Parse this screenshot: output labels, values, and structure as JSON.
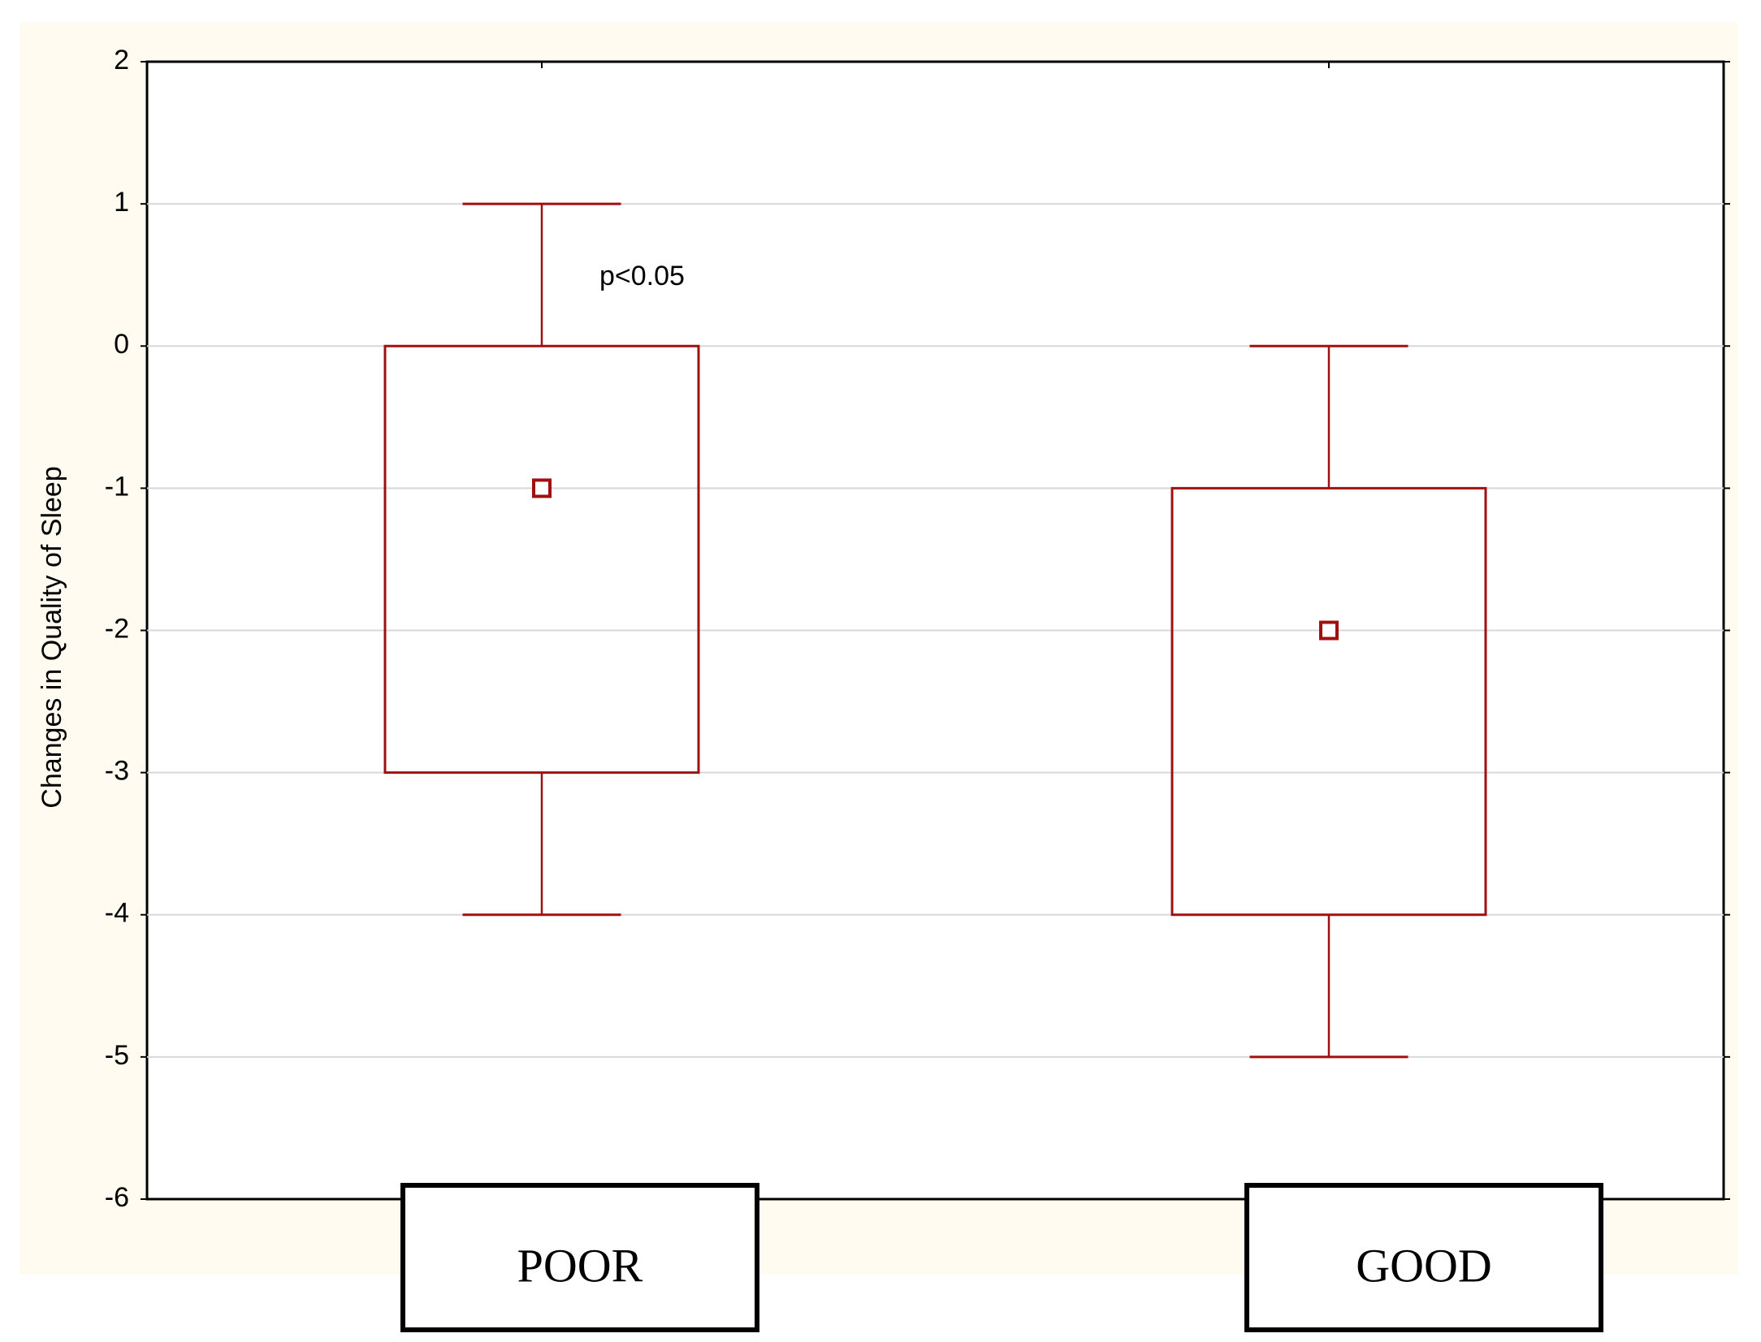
{
  "chart_data": {
    "type": "box",
    "y_label": "Changes in Quality of Sleep",
    "annotation": "p<0.05",
    "categories": [
      "POOR",
      "GOOD"
    ],
    "boxes": [
      {
        "min": -4,
        "q1": -3,
        "median": -1,
        "q3": 0,
        "max": 1
      },
      {
        "min": -5,
        "q1": -4,
        "median": -2,
        "q3": -1,
        "max": 0
      }
    ],
    "color": "#a01010",
    "ylim": [
      -6,
      2
    ],
    "yticks": [
      -6,
      -5,
      -4,
      -3,
      -2,
      -1,
      0,
      1,
      2
    ],
    "grid": true
  }
}
